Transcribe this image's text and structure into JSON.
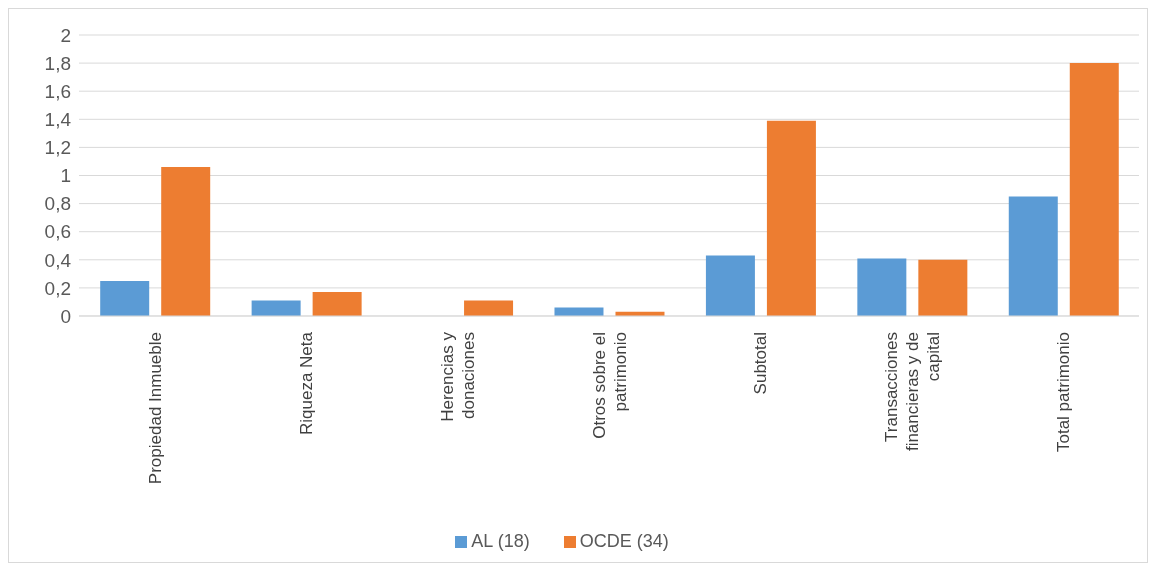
{
  "chart_data": {
    "type": "bar",
    "categories": [
      "Propiedad Inmueble",
      "Riqueza Neta",
      "Herencias y donaciones",
      "Otros sobre el patrimonio",
      "Subtotal",
      "Transacciones financieras y de capital",
      "Total patrimonio"
    ],
    "series": [
      {
        "name": "AL (18)",
        "color": "#5b9bd5",
        "values": [
          0.25,
          0.11,
          null,
          0.06,
          0.43,
          0.41,
          0.85
        ]
      },
      {
        "name": "OCDE (34)",
        "color": "#ed7d31",
        "values": [
          1.06,
          0.17,
          0.11,
          0.03,
          1.39,
          0.4,
          1.8
        ]
      }
    ],
    "ylim": [
      0,
      2
    ],
    "yticks": [
      0,
      {
        "value": 0.2,
        "label": "0,2"
      },
      {
        "value": 0.4,
        "label": "0,4"
      },
      {
        "value": 0.6,
        "label": "0,6"
      },
      {
        "value": 0.8,
        "label": "0,8"
      },
      1,
      {
        "value": 1.2,
        "label": "1,2"
      },
      {
        "value": 1.4,
        "label": "1,4"
      },
      {
        "value": 1.6,
        "label": "1,6"
      },
      {
        "value": 1.8,
        "label": "1,8"
      },
      2
    ],
    "grid": "y",
    "legend": "bottom"
  }
}
